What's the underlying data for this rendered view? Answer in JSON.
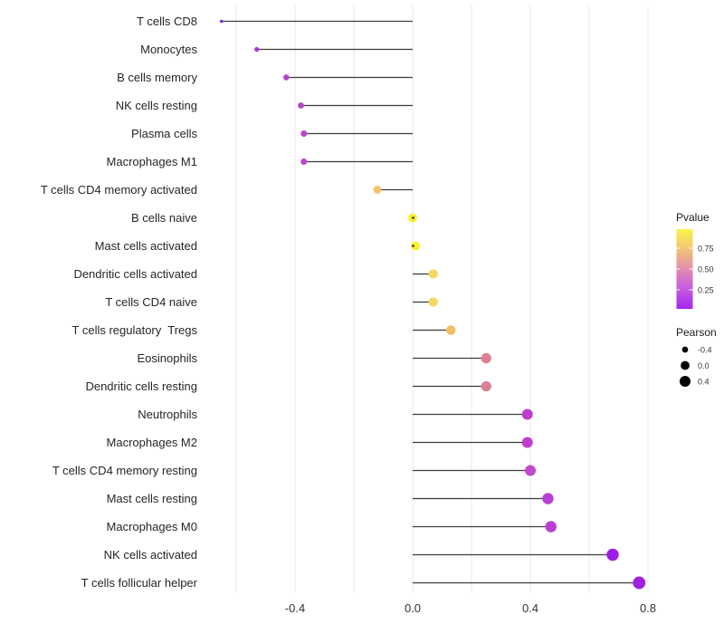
{
  "chart_data": {
    "type": "lollipop",
    "orientation": "horizontal",
    "title": "",
    "xlabel": "",
    "ylabel": "",
    "xlim": [
      -0.73,
      0.85
    ],
    "grid": "vertical-only",
    "gridlines_at": [
      -0.6,
      -0.4,
      -0.2,
      0.0,
      0.2,
      0.4,
      0.6,
      0.8
    ],
    "x_ticks": [
      -0.4,
      0.0,
      0.4,
      0.8
    ],
    "x_tick_labels": [
      "-0.4",
      "0.0",
      "0.4",
      "0.8"
    ],
    "rows": [
      {
        "label": "T cells CD8",
        "pearson": -0.65,
        "color": "#7B2BD1"
      },
      {
        "label": "Monocytes",
        "pearson": -0.53,
        "color": "#A936D6"
      },
      {
        "label": "B cells memory",
        "pearson": -0.43,
        "color": "#B93ED0"
      },
      {
        "label": "NK cells resting",
        "pearson": -0.38,
        "color": "#BC43CE"
      },
      {
        "label": "Plasma cells",
        "pearson": -0.37,
        "color": "#BD45CD"
      },
      {
        "label": "Macrophages M1",
        "pearson": -0.37,
        "color": "#BC43CE"
      },
      {
        "label": "T cells CD4 memory activated",
        "pearson": -0.12,
        "color": "#F2C46F"
      },
      {
        "label": "B cells naive",
        "pearson": 0.0,
        "color": "#F7F02C"
      },
      {
        "label": "Mast cells activated",
        "pearson": 0.01,
        "color": "#F7F02C"
      },
      {
        "label": "Dendritic cells activated",
        "pearson": 0.07,
        "color": "#F4D95A"
      },
      {
        "label": "T cells CD4 naive",
        "pearson": 0.07,
        "color": "#F4D95A"
      },
      {
        "label": "T cells regulatory  Tregs",
        "pearson": 0.13,
        "color": "#F0BE63"
      },
      {
        "label": "Eosinophils",
        "pearson": 0.25,
        "color": "#DC8093"
      },
      {
        "label": "Dendritic cells resting",
        "pearson": 0.25,
        "color": "#DC8093"
      },
      {
        "label": "Neutrophils",
        "pearson": 0.39,
        "color": "#BE3ECC"
      },
      {
        "label": "Macrophages M2",
        "pearson": 0.39,
        "color": "#BE3ECC"
      },
      {
        "label": "T cells CD4 memory resting",
        "pearson": 0.4,
        "color": "#C24BCB"
      },
      {
        "label": "Mast cells resting",
        "pearson": 0.46,
        "color": "#B93FD4"
      },
      {
        "label": "Macrophages M0",
        "pearson": 0.47,
        "color": "#B93FD4"
      },
      {
        "label": "NK cells activated",
        "pearson": 0.68,
        "color": "#9D1CE3"
      },
      {
        "label": "T cells follicular helper",
        "pearson": 0.77,
        "color": "#A120E0"
      }
    ],
    "legends": {
      "pvalue": {
        "title": "Pvalue",
        "tick_labels": [
          "0.75",
          "0.50",
          "0.25"
        ],
        "tick_values": [
          0.75,
          0.5,
          0.25
        ],
        "bar_range": [
          0.98,
          0.02
        ],
        "gradient_stops": [
          {
            "offset": "0%",
            "color": "#F9F44C"
          },
          {
            "offset": "25%",
            "color": "#F2C472"
          },
          {
            "offset": "50%",
            "color": "#E18CB0"
          },
          {
            "offset": "75%",
            "color": "#C75ADF"
          },
          {
            "offset": "100%",
            "color": "#A524F0"
          }
        ]
      },
      "pearson": {
        "title": "Pearson",
        "items": [
          {
            "label": "-0.4",
            "value": -0.4
          },
          {
            "label": "0.0",
            "value": 0.0
          },
          {
            "label": "0.4",
            "value": 0.4
          }
        ],
        "dot_color": "#000000"
      }
    },
    "colors": {
      "background": "#FFFFFF",
      "gridline": "#ECECEC",
      "stem": "#3C3C3C",
      "axis_text": "#333333",
      "label_text": "#262626"
    }
  }
}
